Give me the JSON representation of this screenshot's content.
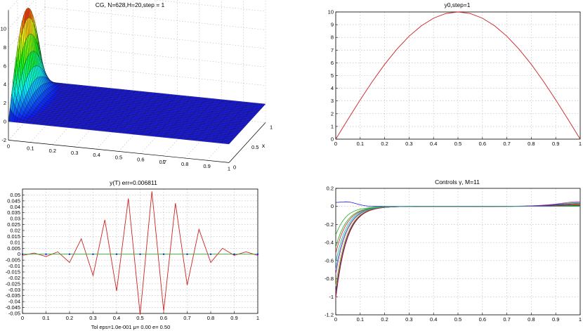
{
  "figure": {
    "colors": {
      "red": "#cc2222",
      "green": "#22aa22",
      "blue": "#1a1ae0",
      "frame": "#000000",
      "grid": "#b8b8b8"
    }
  },
  "chart_data": [
    {
      "id": "surface",
      "type": "surface3d",
      "title": "CG, N=628,H=20,step = 1",
      "xlabel": "t",
      "ylabel": "x",
      "zlabel": "",
      "xlim": [
        0,
        1
      ],
      "ylim": [
        0,
        1
      ],
      "zlim": [
        -2,
        12
      ],
      "xticks": [
        "0",
        "0.1",
        "0.2",
        "0.3",
        "0.4",
        "0.5",
        "0.6",
        "0.7",
        "0.8",
        "0.9",
        "1"
      ],
      "yticks": [
        "0",
        "0.5",
        "1"
      ],
      "zticks": [
        "-2",
        "0",
        "2",
        "4",
        "6",
        "8",
        "10"
      ],
      "peak": {
        "t": 0,
        "x": 0.5,
        "z": 10
      },
      "description_values": {
        "initial_profile_max": 10,
        "decay_by_t": 0.1
      },
      "grid": true
    },
    {
      "id": "y0",
      "type": "line",
      "title": "y0,step=1",
      "xlabel": "",
      "ylabel": "",
      "xlim": [
        0,
        1
      ],
      "ylim": [
        0,
        10
      ],
      "xticks": [
        "0",
        "0.1",
        "0.2",
        "0.3",
        "0.4",
        "0.5",
        "0.6",
        "0.7",
        "0.8",
        "0.9",
        "1"
      ],
      "yticks": [
        "0",
        "1",
        "2",
        "3",
        "4",
        "5",
        "6",
        "7",
        "8",
        "9",
        "10"
      ],
      "series": [
        {
          "color": "red",
          "x": [
            0,
            0.05,
            0.1,
            0.15,
            0.2,
            0.25,
            0.3,
            0.35,
            0.4,
            0.45,
            0.5,
            0.55,
            0.6,
            0.65,
            0.7,
            0.75,
            0.8,
            0.85,
            0.9,
            0.95,
            1
          ],
          "y": [
            0,
            1.56,
            3.09,
            4.54,
            5.88,
            7.07,
            8.09,
            8.91,
            9.51,
            9.88,
            10,
            9.88,
            9.51,
            8.91,
            8.09,
            7.07,
            5.88,
            4.54,
            3.09,
            1.56,
            0
          ]
        }
      ],
      "grid": true
    },
    {
      "id": "yT",
      "type": "line",
      "title": "y(T) err=0.006811",
      "xlabel": "Tol eps=1.0e-001 μ=    0.00 e=    0.50",
      "ylabel": "",
      "xlim": [
        0,
        1
      ],
      "ylim": [
        -0.05,
        0.055
      ],
      "xticks": [
        "0",
        "0.1",
        "0.2",
        "0.3",
        "0.4",
        "0.5",
        "0.6",
        "0.7",
        "0.8",
        "0.9",
        "1"
      ],
      "yticks": [
        "-0.05",
        "-0.045",
        "-0.04",
        "-0.035",
        "-0.03",
        "-0.025",
        "-0.02",
        "-0.015",
        "-0.01",
        "-0.005",
        "0",
        "0.005",
        "0.01",
        "0.015",
        "0.02",
        "0.025",
        "0.03",
        "0.035",
        "0.04",
        "0.045",
        "0.05"
      ],
      "series": [
        {
          "color": "red",
          "x": [
            0,
            0.05,
            0.1,
            0.15,
            0.2,
            0.25,
            0.3,
            0.35,
            0.4,
            0.45,
            0.5,
            0.55,
            0.6,
            0.65,
            0.7,
            0.75,
            0.8,
            0.85,
            0.9,
            0.95,
            1
          ],
          "y": [
            -0.001,
            0.001,
            -0.002,
            0.002,
            -0.007,
            0.013,
            -0.018,
            0.029,
            -0.031,
            0.047,
            -0.051,
            0.053,
            -0.048,
            0.043,
            -0.026,
            0.021,
            -0.007,
            0.005,
            -0.001,
            0.002,
            -0.001
          ]
        },
        {
          "color": "green",
          "x": [
            0,
            1
          ],
          "y": [
            0,
            0
          ]
        }
      ],
      "markers": {
        "color": "blue",
        "x": [
          0,
          0.1,
          0.2,
          0.3,
          0.4,
          0.5,
          0.6,
          0.7,
          0.8,
          0.9,
          1
        ],
        "y": [
          0,
          0,
          0,
          0,
          0,
          0,
          0,
          0,
          0,
          0,
          0
        ]
      },
      "grid": true
    },
    {
      "id": "controls",
      "type": "line",
      "title": "Controls γ, M=11",
      "xlabel": "",
      "ylabel": "",
      "xlim": [
        0,
        1
      ],
      "ylim": [
        -1.2,
        0.2
      ],
      "xticks": [
        "0",
        "0.1",
        "0.2",
        "0.3",
        "0.4",
        "0.5",
        "0.6",
        "0.7",
        "0.8",
        "0.9",
        "1"
      ],
      "yticks": [
        "-1.2",
        "-1",
        "-0.8",
        "-0.6",
        "-0.4",
        "-0.2",
        "0",
        "0.2"
      ],
      "series": [
        {
          "color": "#1a1ae0",
          "y0": 0.03,
          "hump": 0.04,
          "tail": 0.02
        },
        {
          "color": "#22aa22",
          "y0": -0.32,
          "hump": 0.01,
          "tail": 0.08
        },
        {
          "color": "#cc2222",
          "y0": -0.52,
          "hump": 0.0,
          "tail": 0.05
        },
        {
          "color": "#22aaaa",
          "y0": -0.62,
          "hump": 0.0,
          "tail": 0.03
        },
        {
          "color": "#aa22aa",
          "y0": -0.75,
          "hump": 0.0,
          "tail": 0.1
        },
        {
          "color": "#aaaa22",
          "y0": -0.88,
          "hump": 0.0,
          "tail": 0.04
        },
        {
          "color": "#333333",
          "y0": -0.95,
          "hump": 0.0,
          "tail": 0.02
        },
        {
          "color": "#1a1ae0",
          "y0": -1.0,
          "hump": 0.0,
          "tail": 0.06
        },
        {
          "color": "#22aa22",
          "y0": -0.45,
          "hump": 0.0,
          "tail": 0.01
        },
        {
          "color": "#cc2222",
          "y0": -1.02,
          "hump": 0.0,
          "tail": 0.03
        },
        {
          "color": "#22aaaa",
          "y0": -0.7,
          "hump": 0.0,
          "tail": 0.0
        }
      ],
      "grid": true
    }
  ]
}
